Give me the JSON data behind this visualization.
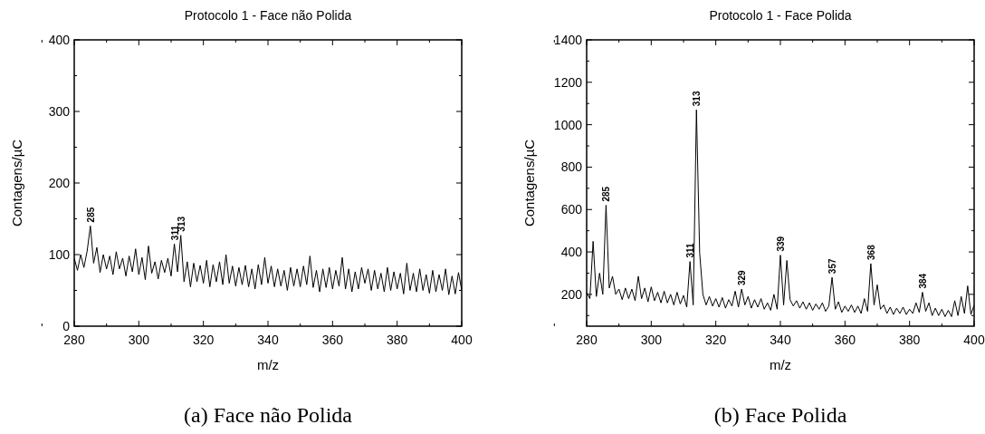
{
  "chart_data": [
    {
      "type": "line",
      "title": "Protocolo 1 - Face não Polida",
      "xlabel": "m/z",
      "ylabel": "Contagens/µC",
      "xlim": [
        280,
        400
      ],
      "xticks": [
        280,
        300,
        320,
        340,
        360,
        380,
        400
      ],
      "ylim": [
        0,
        400
      ],
      "yticks": [
        0,
        100,
        200,
        300,
        400
      ],
      "x": [
        280,
        281,
        282,
        283,
        284,
        285,
        286,
        287,
        288,
        289,
        290,
        291,
        292,
        293,
        294,
        295,
        296,
        297,
        298,
        299,
        300,
        301,
        302,
        303,
        304,
        305,
        306,
        307,
        308,
        309,
        310,
        311,
        312,
        313,
        314,
        315,
        316,
        317,
        318,
        319,
        320,
        321,
        322,
        323,
        324,
        325,
        326,
        327,
        328,
        329,
        330,
        331,
        332,
        333,
        334,
        335,
        336,
        337,
        338,
        339,
        340,
        341,
        342,
        343,
        344,
        345,
        346,
        347,
        348,
        349,
        350,
        351,
        352,
        353,
        354,
        355,
        356,
        357,
        358,
        359,
        360,
        361,
        362,
        363,
        364,
        365,
        366,
        367,
        368,
        369,
        370,
        371,
        372,
        373,
        374,
        375,
        376,
        377,
        378,
        379,
        380,
        381,
        382,
        383,
        384,
        385,
        386,
        387,
        388,
        389,
        390,
        391,
        392,
        393,
        394,
        395,
        396,
        397,
        398,
        399,
        400
      ],
      "series": [
        {
          "color": "#000000",
          "values": [
            95,
            78,
            100,
            82,
            105,
            140,
            88,
            110,
            75,
            100,
            80,
            98,
            72,
            104,
            80,
            95,
            70,
            98,
            76,
            108,
            72,
            96,
            65,
            112,
            74,
            90,
            66,
            92,
            75,
            95,
            70,
            115,
            76,
            127,
            62,
            90,
            55,
            88,
            62,
            85,
            60,
            92,
            55,
            86,
            62,
            90,
            58,
            100,
            60,
            84,
            56,
            82,
            58,
            85,
            55,
            80,
            52,
            86,
            58,
            96,
            60,
            84,
            55,
            80,
            56,
            78,
            50,
            82,
            56,
            80,
            55,
            84,
            58,
            98,
            54,
            78,
            48,
            80,
            54,
            82,
            52,
            78,
            56,
            96,
            52,
            80,
            48,
            76,
            52,
            82,
            60,
            80,
            50,
            78,
            52,
            74,
            48,
            82,
            50,
            76,
            52,
            74,
            45,
            88,
            50,
            74,
            48,
            80,
            50,
            72,
            46,
            78,
            48,
            72,
            50,
            80,
            44,
            70,
            45,
            75,
            50
          ]
        }
      ],
      "annotations": [
        {
          "text": "285",
          "x": 285,
          "y": 140
        },
        {
          "text": "311",
          "x": 311,
          "y": 115
        },
        {
          "text": "313",
          "x": 313,
          "y": 127
        },
        "(a) Face não Polida"
      ]
    },
    {
      "type": "line",
      "title": "Protocolo 1 - Face Polida",
      "xlabel": "m/z",
      "ylabel": "Contagens/µC",
      "xlim": [
        280,
        400
      ],
      "xticks": [
        280,
        300,
        320,
        340,
        360,
        380,
        400
      ],
      "ylim": [
        50,
        1400
      ],
      "yticks": [
        200,
        400,
        600,
        800,
        1000,
        1200,
        1400
      ],
      "x": [
        280,
        281,
        282,
        283,
        284,
        285,
        286,
        287,
        288,
        289,
        290,
        291,
        292,
        293,
        294,
        295,
        296,
        297,
        298,
        299,
        300,
        301,
        302,
        303,
        304,
        305,
        306,
        307,
        308,
        309,
        310,
        311,
        312,
        313,
        314,
        315,
        316,
        317,
        318,
        319,
        320,
        321,
        322,
        323,
        324,
        325,
        326,
        327,
        328,
        329,
        330,
        331,
        332,
        333,
        334,
        335,
        336,
        337,
        338,
        339,
        340,
        341,
        342,
        343,
        344,
        345,
        346,
        347,
        348,
        349,
        350,
        351,
        352,
        353,
        354,
        355,
        356,
        357,
        358,
        359,
        360,
        361,
        362,
        363,
        364,
        365,
        366,
        367,
        368,
        369,
        370,
        371,
        372,
        373,
        374,
        375,
        376,
        377,
        378,
        379,
        380,
        381,
        382,
        383,
        384,
        385,
        386,
        387,
        388,
        389,
        390,
        391,
        392,
        393,
        394,
        395,
        396,
        397,
        398,
        399,
        400
      ],
      "series": [
        {
          "color": "#000000",
          "values": [
            210,
            180,
            450,
            190,
            300,
            200,
            620,
            230,
            285,
            200,
            225,
            175,
            230,
            180,
            225,
            170,
            285,
            180,
            230,
            165,
            235,
            170,
            210,
            160,
            215,
            160,
            200,
            150,
            210,
            155,
            195,
            140,
            355,
            150,
            1070,
            395,
            200,
            150,
            190,
            145,
            180,
            140,
            185,
            135,
            175,
            145,
            215,
            140,
            225,
            150,
            190,
            135,
            175,
            140,
            180,
            130,
            160,
            125,
            200,
            130,
            385,
            150,
            360,
            175,
            145,
            170,
            135,
            165,
            130,
            160,
            125,
            155,
            130,
            160,
            120,
            145,
            280,
            130,
            165,
            115,
            145,
            120,
            150,
            115,
            145,
            110,
            180,
            120,
            345,
            150,
            245,
            130,
            150,
            110,
            140,
            105,
            135,
            110,
            140,
            105,
            130,
            110,
            160,
            115,
            210,
            120,
            160,
            100,
            135,
            100,
            130,
            95,
            125,
            95,
            170,
            100,
            190,
            110,
            240,
            105,
            150
          ]
        }
      ],
      "annotations": [
        {
          "text": "285",
          "x": 286,
          "y": 620
        },
        {
          "text": "311",
          "x": 312,
          "y": 355
        },
        {
          "text": "313",
          "x": 314,
          "y": 1070
        },
        {
          "text": "329",
          "x": 328,
          "y": 225
        },
        {
          "text": "339",
          "x": 340,
          "y": 385
        },
        {
          "text": "357",
          "x": 356,
          "y": 280
        },
        {
          "text": "368",
          "x": 368,
          "y": 345
        },
        {
          "text": "384",
          "x": 384,
          "y": 210
        },
        "(b) Face Polida"
      ]
    }
  ]
}
